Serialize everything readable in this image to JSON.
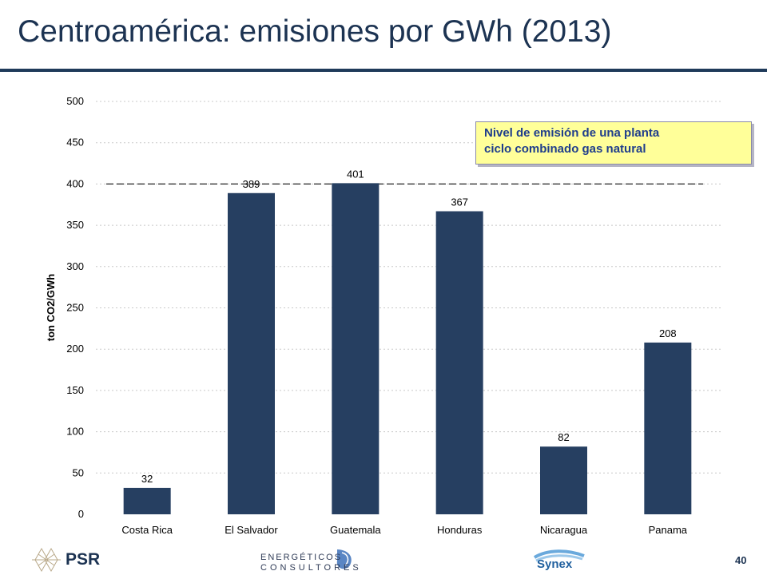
{
  "slide": {
    "title": "Centroamérica: emisiones por GWh (2013)",
    "page_number": "40",
    "callout": {
      "line1": "Nivel de emisión de una planta",
      "line2": "ciclo combinado gas natural"
    },
    "logos": {
      "psr": "PSR",
      "mec_line1": "ENERGÉTICOS",
      "mec_line2": "CONSULTORES",
      "synex": "Synex"
    }
  },
  "chart_data": {
    "type": "bar",
    "title": "",
    "xlabel": "",
    "ylabel": "ton CO2/GWh",
    "categories": [
      "Costa Rica",
      "El Salvador",
      "Guatemala",
      "Honduras",
      "Nicaragua",
      "Panama"
    ],
    "values": [
      32,
      389,
      401,
      367,
      82,
      208
    ],
    "data_labels": [
      "32",
      "389",
      "401",
      "367",
      "82",
      "208"
    ],
    "ylim": [
      0,
      500
    ],
    "yticks": [
      0,
      50,
      100,
      150,
      200,
      250,
      300,
      350,
      400,
      450,
      500
    ],
    "ytick_labels": [
      "0",
      "50",
      "100",
      "150",
      "200",
      "250",
      "300",
      "350",
      "400",
      "450",
      "500"
    ],
    "reference_line": 400,
    "grid": true,
    "bar_color": "#263f61"
  }
}
